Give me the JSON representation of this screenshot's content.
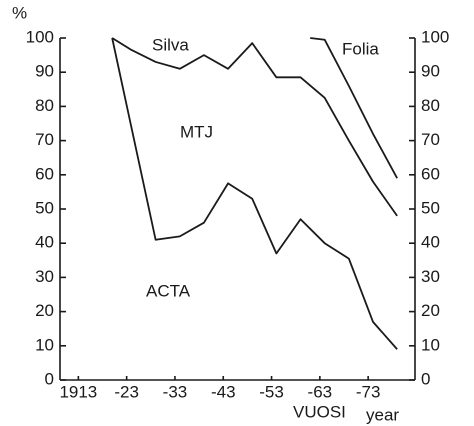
{
  "chart_data": {
    "type": "line",
    "y_label": "%",
    "x_labels": [
      "VUOSI",
      "year"
    ],
    "annotations": [
      "Silva",
      "Folia",
      "MTJ",
      "ACTA"
    ],
    "xlim": [
      1909.2,
      1982.7
    ],
    "xticks": [
      1913,
      {
        "value": 1923,
        "label": "-23"
      },
      {
        "value": 1933,
        "label": "-33"
      },
      {
        "value": 1943,
        "label": "-43"
      },
      {
        "value": 1953,
        "label": "-53"
      },
      {
        "value": 1963,
        "label": "-63"
      },
      {
        "value": 1973,
        "label": "-73"
      }
    ],
    "ylim": [
      0,
      100
    ],
    "yticks": [
      0,
      10,
      20,
      30,
      40,
      50,
      60,
      70,
      80,
      90,
      100
    ],
    "y2lim": [
      0,
      100
    ],
    "y2ticks": [
      0,
      10,
      20,
      30,
      40,
      50,
      60,
      70,
      80,
      90,
      100
    ],
    "series": [
      {
        "color": "#1a1a1a",
        "x": [
          1920,
          1929,
          1934,
          1939,
          1944,
          1949,
          1954,
          1959,
          1964,
          1969,
          1974,
          1979
        ],
        "values": [
          100,
          41,
          42,
          46,
          57.5,
          53,
          37,
          47,
          40,
          35.5,
          17,
          9
        ]
      },
      {
        "color": "#1a1a1a",
        "x": [
          1920,
          1924,
          1929,
          1934,
          1939,
          1944,
          1949,
          1954,
          1959,
          1964,
          1969,
          1974,
          1979
        ],
        "values": [
          100,
          96.5,
          93,
          91,
          95,
          91,
          98.5,
          88.5,
          88.5,
          82.5,
          70,
          58,
          48
        ]
      },
      {
        "color": "#1a1a1a",
        "x": [
          1961,
          1964,
          1969,
          1974,
          1979
        ],
        "values": [
          100,
          99.5,
          86,
          72,
          59
        ]
      }
    ]
  }
}
